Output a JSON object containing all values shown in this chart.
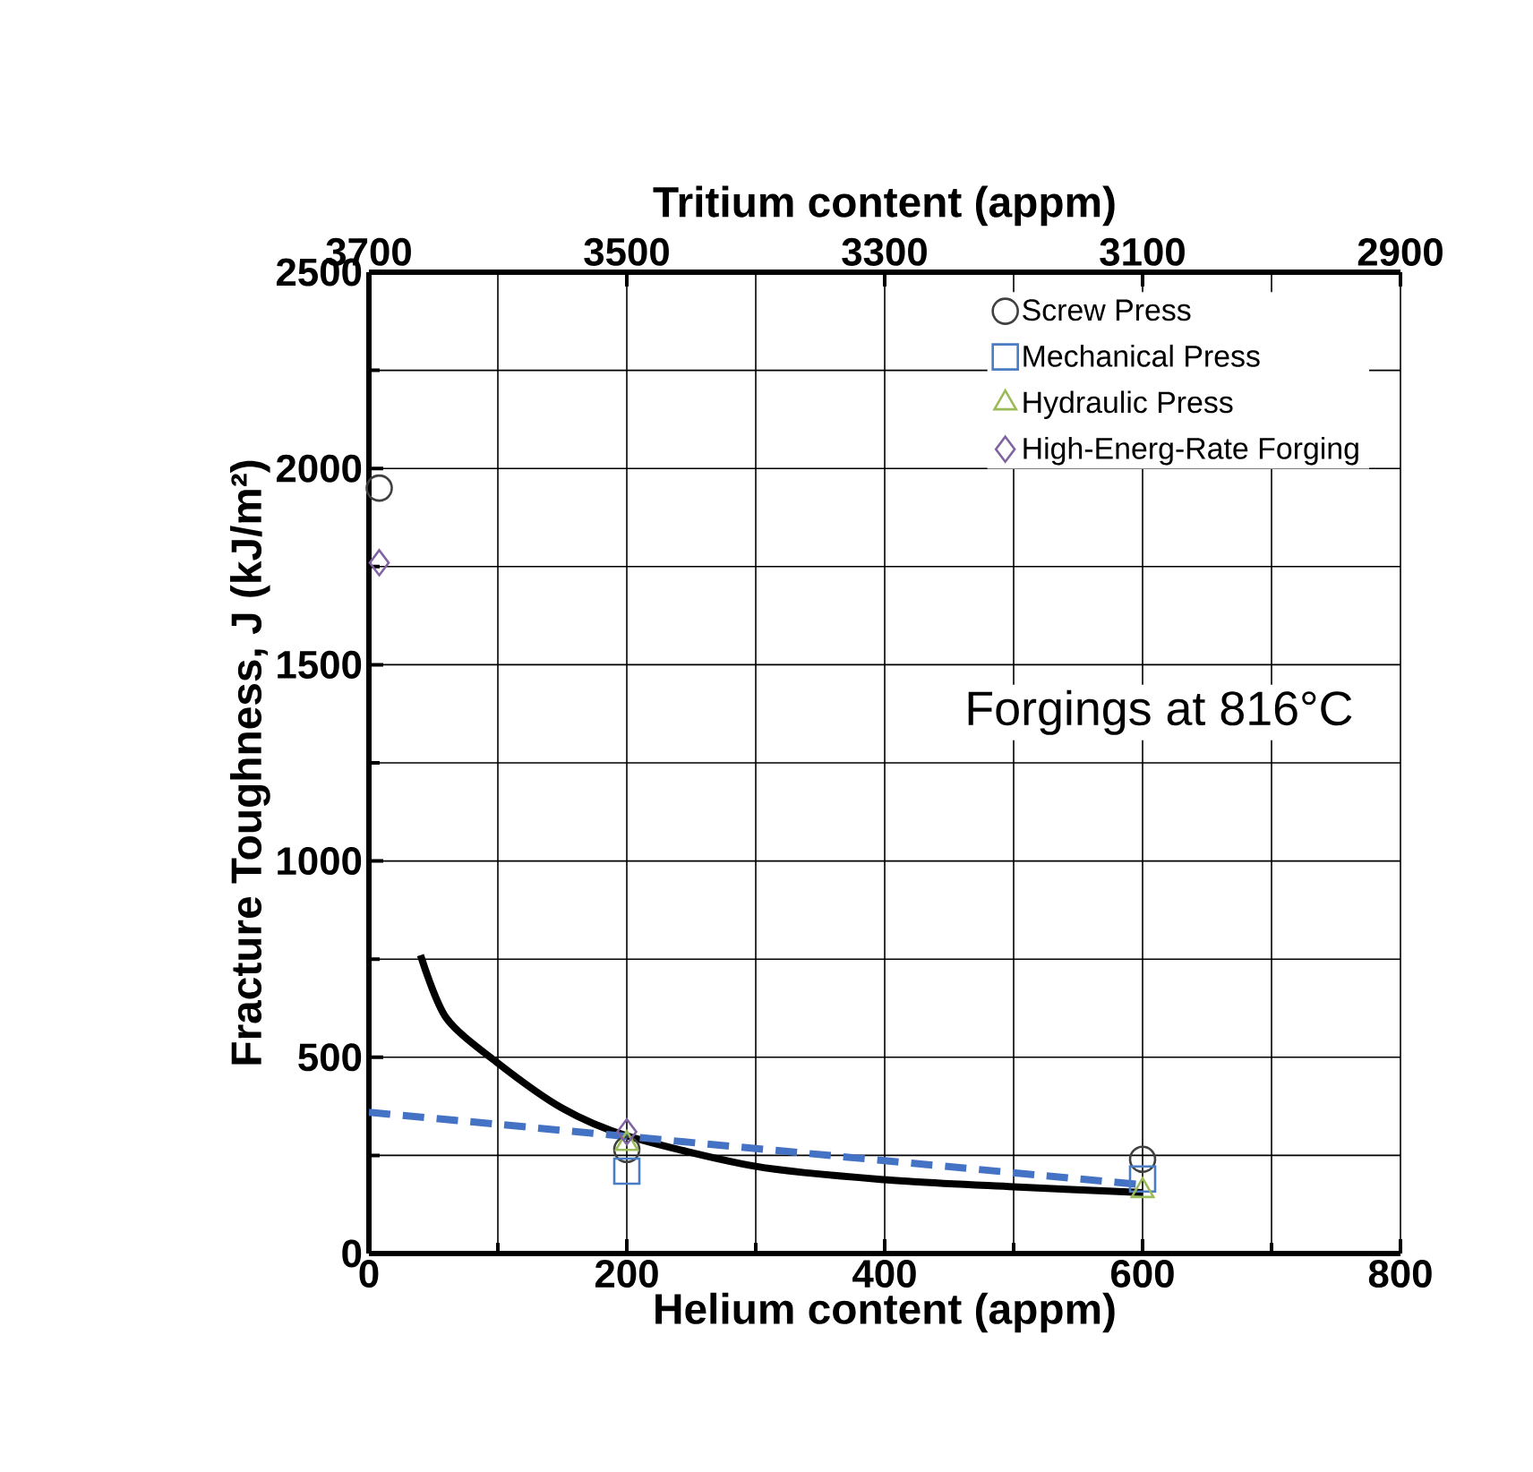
{
  "chart_data": {
    "type": "scatter",
    "xlabel": "Helium content (appm)",
    "x2label": "Tritium content (appm)",
    "ylabel": "Fracture Toughness, J (kJ/m²)",
    "xlim": [
      0,
      800
    ],
    "xticks": [
      0,
      200,
      400,
      600,
      800
    ],
    "x2lim": [
      3700,
      2900
    ],
    "x2ticks": [
      3700,
      3500,
      3300,
      3100,
      2900
    ],
    "ylim": [
      0,
      2500
    ],
    "yticks": [
      0,
      500,
      1000,
      1500,
      2000,
      2500
    ],
    "grid": true,
    "legend": "top right",
    "annotations": [
      "Forgings at 816°C"
    ],
    "series": [
      {
        "name": "Screw Press",
        "color": "#404040",
        "marker": "circle",
        "x": [
          8,
          200,
          600
        ],
        "values": [
          1950,
          265,
          240
        ]
      },
      {
        "name": "Mechanical Press",
        "color": "#4a7cc4",
        "marker": "square",
        "x": [
          200,
          600
        ],
        "values": [
          210,
          190
        ]
      },
      {
        "name": "Hydraulic Press",
        "color": "#9bbb59",
        "marker": "triangle",
        "x": [
          200,
          600
        ],
        "values": [
          280,
          160
        ]
      },
      {
        "name": "High-Energ-Rate Forging",
        "color": "#8064a2",
        "marker": "diamond",
        "x": [
          8,
          200
        ],
        "values": [
          1760,
          310
        ]
      },
      {
        "type": "line",
        "color": "#000000",
        "marker": "none",
        "line_style": "solid",
        "x": [
          40,
          60,
          100,
          150,
          200,
          300,
          400,
          500,
          600
        ],
        "values": [
          760,
          600,
          485,
          370,
          300,
          222,
          188,
          170,
          155
        ]
      },
      {
        "type": "line",
        "color": "#4472c4",
        "marker": "none",
        "line_style": "dashed",
        "x": [
          0,
          600
        ],
        "values": [
          360,
          175
        ]
      }
    ]
  }
}
